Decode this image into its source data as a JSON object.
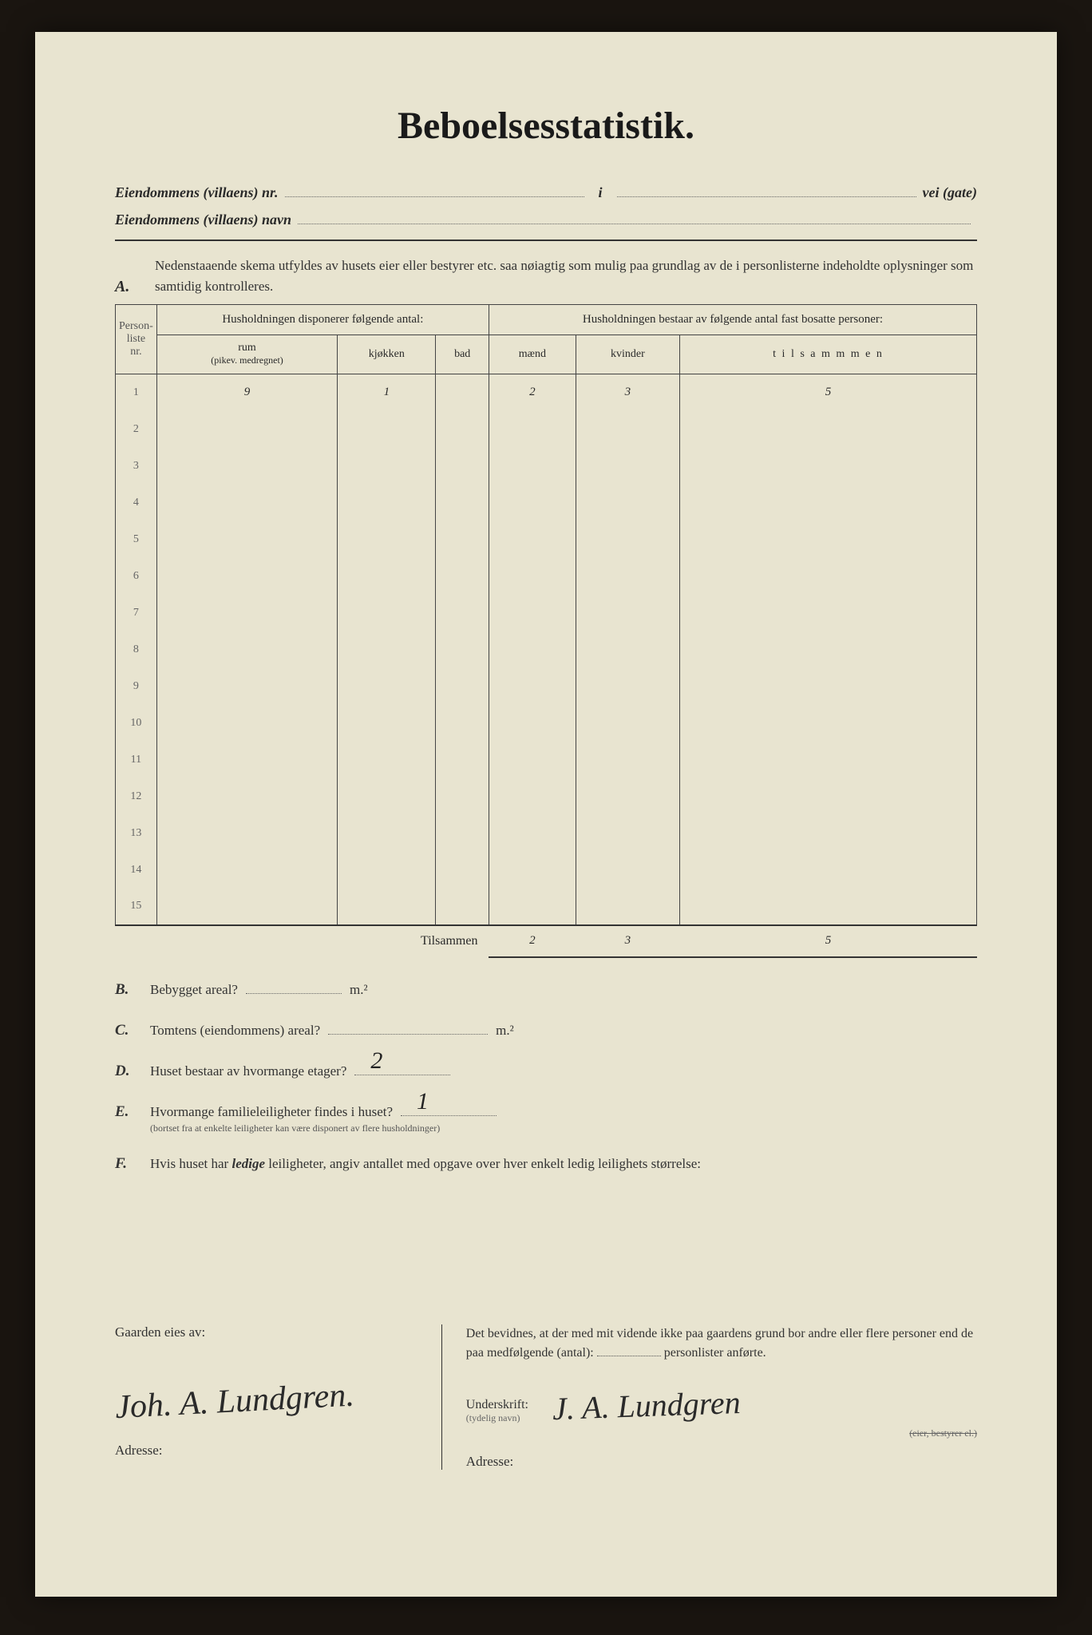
{
  "title": "Beboelsesstatistik.",
  "header1_label": "Eiendommens (villaens) nr.",
  "header1_value": "i",
  "header1_suffix": "vei (gate)",
  "header2_label": "Eiendommens (villaens) navn",
  "sectionA": {
    "letter": "A.",
    "text": "Nedenstaaende skema utfyldes av husets eier eller bestyrer etc. saa nøiagtig som mulig paa grundlag av de i personlisterne indeholdte oplysninger som samtidig kontrolleres."
  },
  "table": {
    "col_personliste": "Person-\nliste\nnr.",
    "group_left": "Husholdningen disponerer følgende antal:",
    "group_right": "Husholdningen bestaar av følgende antal fast bosatte personer:",
    "col_rum": "rum",
    "col_rum_sub": "(pikev. medregnet)",
    "col_kjokken": "kjøkken",
    "col_bad": "bad",
    "col_maend": "mænd",
    "col_kvinder": "kvinder",
    "col_tilsammen": "t i l s a m m m e n",
    "row_nums": [
      "1",
      "2",
      "3",
      "4",
      "5",
      "6",
      "7",
      "8",
      "9",
      "10",
      "11",
      "12",
      "13",
      "14",
      "15"
    ],
    "rows": [
      {
        "rum": "9",
        "kjokken": "1",
        "bad": "",
        "maend": "2",
        "kvinder": "3",
        "tilsammen": "5"
      },
      {
        "rum": "",
        "kjokken": "",
        "bad": "",
        "maend": "",
        "kvinder": "",
        "tilsammen": ""
      },
      {
        "rum": "",
        "kjokken": "",
        "bad": "",
        "maend": "",
        "kvinder": "",
        "tilsammen": ""
      },
      {
        "rum": "",
        "kjokken": "",
        "bad": "",
        "maend": "",
        "kvinder": "",
        "tilsammen": ""
      },
      {
        "rum": "",
        "kjokken": "",
        "bad": "",
        "maend": "",
        "kvinder": "",
        "tilsammen": ""
      },
      {
        "rum": "",
        "kjokken": "",
        "bad": "",
        "maend": "",
        "kvinder": "",
        "tilsammen": ""
      },
      {
        "rum": "",
        "kjokken": "",
        "bad": "",
        "maend": "",
        "kvinder": "",
        "tilsammen": ""
      },
      {
        "rum": "",
        "kjokken": "",
        "bad": "",
        "maend": "",
        "kvinder": "",
        "tilsammen": ""
      },
      {
        "rum": "",
        "kjokken": "",
        "bad": "",
        "maend": "",
        "kvinder": "",
        "tilsammen": ""
      },
      {
        "rum": "",
        "kjokken": "",
        "bad": "",
        "maend": "",
        "kvinder": "",
        "tilsammen": ""
      },
      {
        "rum": "",
        "kjokken": "",
        "bad": "",
        "maend": "",
        "kvinder": "",
        "tilsammen": ""
      },
      {
        "rum": "",
        "kjokken": "",
        "bad": "",
        "maend": "",
        "kvinder": "",
        "tilsammen": ""
      },
      {
        "rum": "",
        "kjokken": "",
        "bad": "",
        "maend": "",
        "kvinder": "",
        "tilsammen": ""
      },
      {
        "rum": "",
        "kjokken": "",
        "bad": "",
        "maend": "",
        "kvinder": "",
        "tilsammen": ""
      },
      {
        "rum": "",
        "kjokken": "",
        "bad": "",
        "maend": "",
        "kvinder": "",
        "tilsammen": ""
      }
    ],
    "totals_label": "Tilsammen",
    "totals": {
      "maend": "2",
      "kvinder": "3",
      "tilsammen": "5"
    }
  },
  "questions": {
    "B": {
      "letter": "B.",
      "text": "Bebygget areal?",
      "suffix": "m.²",
      "answer": ""
    },
    "C": {
      "letter": "C.",
      "text": "Tomtens (eiendommens) areal?",
      "suffix": "m.²",
      "answer": ""
    },
    "D": {
      "letter": "D.",
      "text": "Huset bestaar av hvormange etager?",
      "suffix": "",
      "answer": "2"
    },
    "E": {
      "letter": "E.",
      "text": "Hvormange familieleiligheter findes i huset?",
      "sub": "(bortset fra at enkelte leiligheter kan være disponert av flere husholdninger)",
      "answer": "1"
    },
    "F": {
      "letter": "F.",
      "text": "Hvis huset har ledige leiligheter, angiv antallet med opgave over hver enkelt ledig leilighets størrelse:"
    }
  },
  "footer": {
    "left_title": "Gaarden eies av:",
    "owner_signature": "Joh. A. Lundgren.",
    "adresse_label": "Adresse:",
    "cert_text_1": "Det bevidnes, at der med mit vidende ikke paa gaardens grund bor andre eller flere personer end de paa medfølgende (antal):",
    "cert_text_2": "personlister anførte.",
    "underskrift_label": "Underskrift:",
    "underskrift_sub": "(tydelig navn)",
    "signature2": "J. A. Lundgren",
    "small_label": "(eier, bestyrer el.)"
  },
  "colors": {
    "page_bg": "#e8e4d0",
    "outer_bg": "#1a1510",
    "text": "#2a2a2a",
    "border": "#444"
  }
}
